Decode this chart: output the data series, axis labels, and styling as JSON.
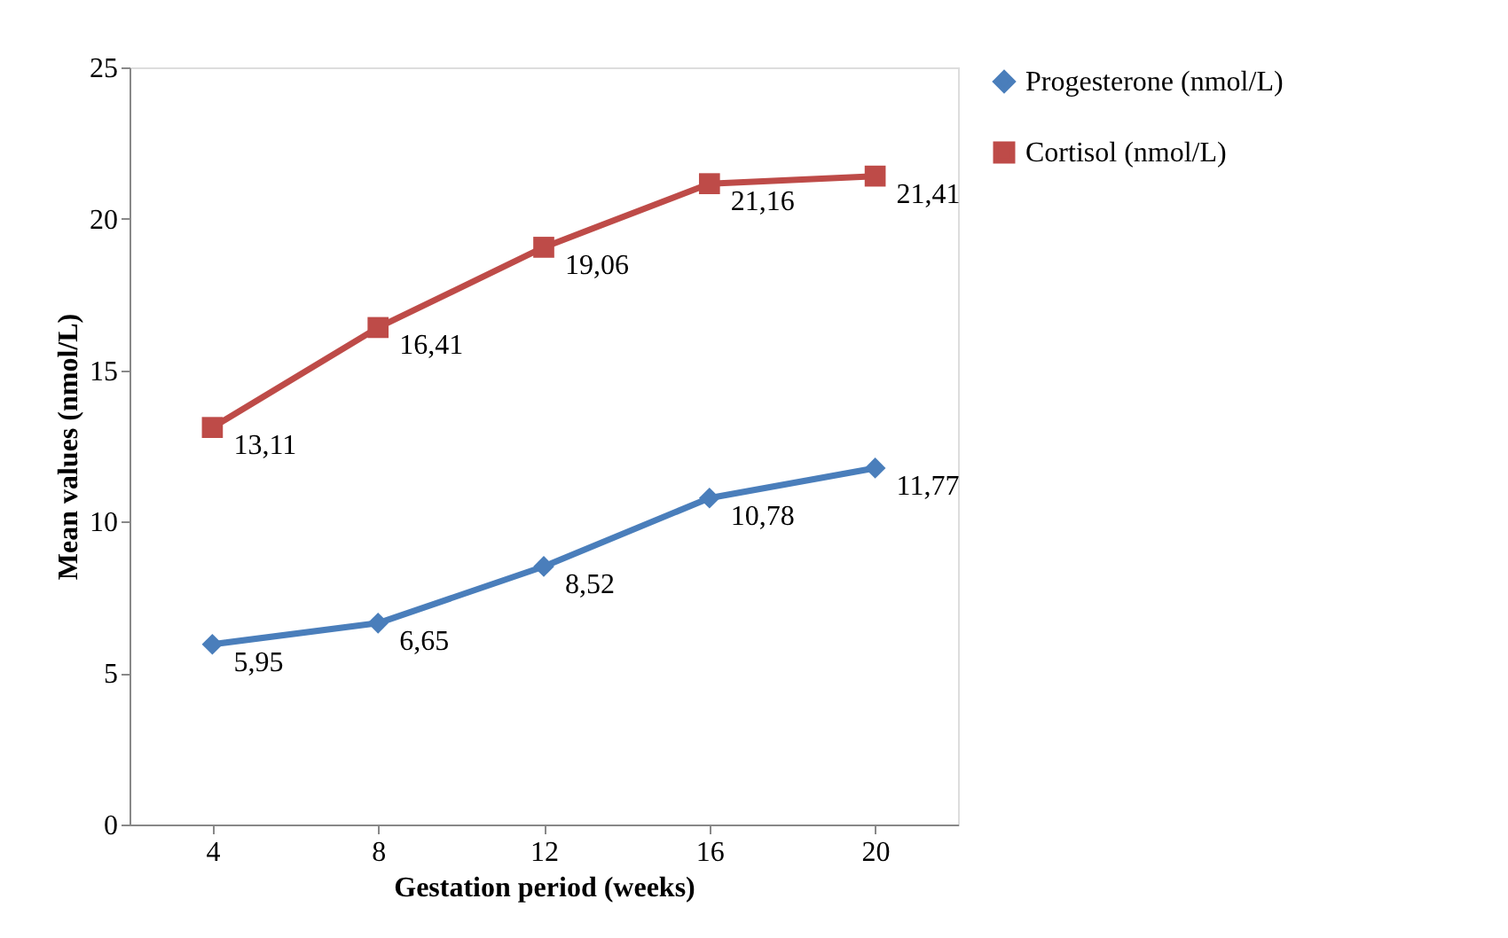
{
  "chart_data": {
    "type": "line",
    "xlabel": "Gestation period (weeks)",
    "ylabel": "Mean values (nmol/L)",
    "categories": [
      "4",
      "8",
      "12",
      "16",
      "20"
    ],
    "ylim": [
      0,
      25
    ],
    "yticks": [
      0,
      5,
      10,
      15,
      20,
      25
    ],
    "grid": false,
    "legend": "right",
    "series": [
      {
        "name": "Progesterone (nmol/L)",
        "color": "#4a7ebb",
        "marker": "diamond",
        "values": [
          5.95,
          6.65,
          8.52,
          10.78,
          11.77
        ],
        "value_labels": [
          "5,95",
          "6,65",
          "8,52",
          "10,78",
          "11,77"
        ]
      },
      {
        "name": "Cortisol (nmol/L)",
        "color": "#be4b48",
        "marker": "square",
        "values": [
          13.11,
          16.41,
          19.06,
          21.16,
          21.41
        ],
        "value_labels": [
          "13,11",
          "16,41",
          "19,06",
          "21,16",
          "21,41"
        ]
      }
    ]
  }
}
